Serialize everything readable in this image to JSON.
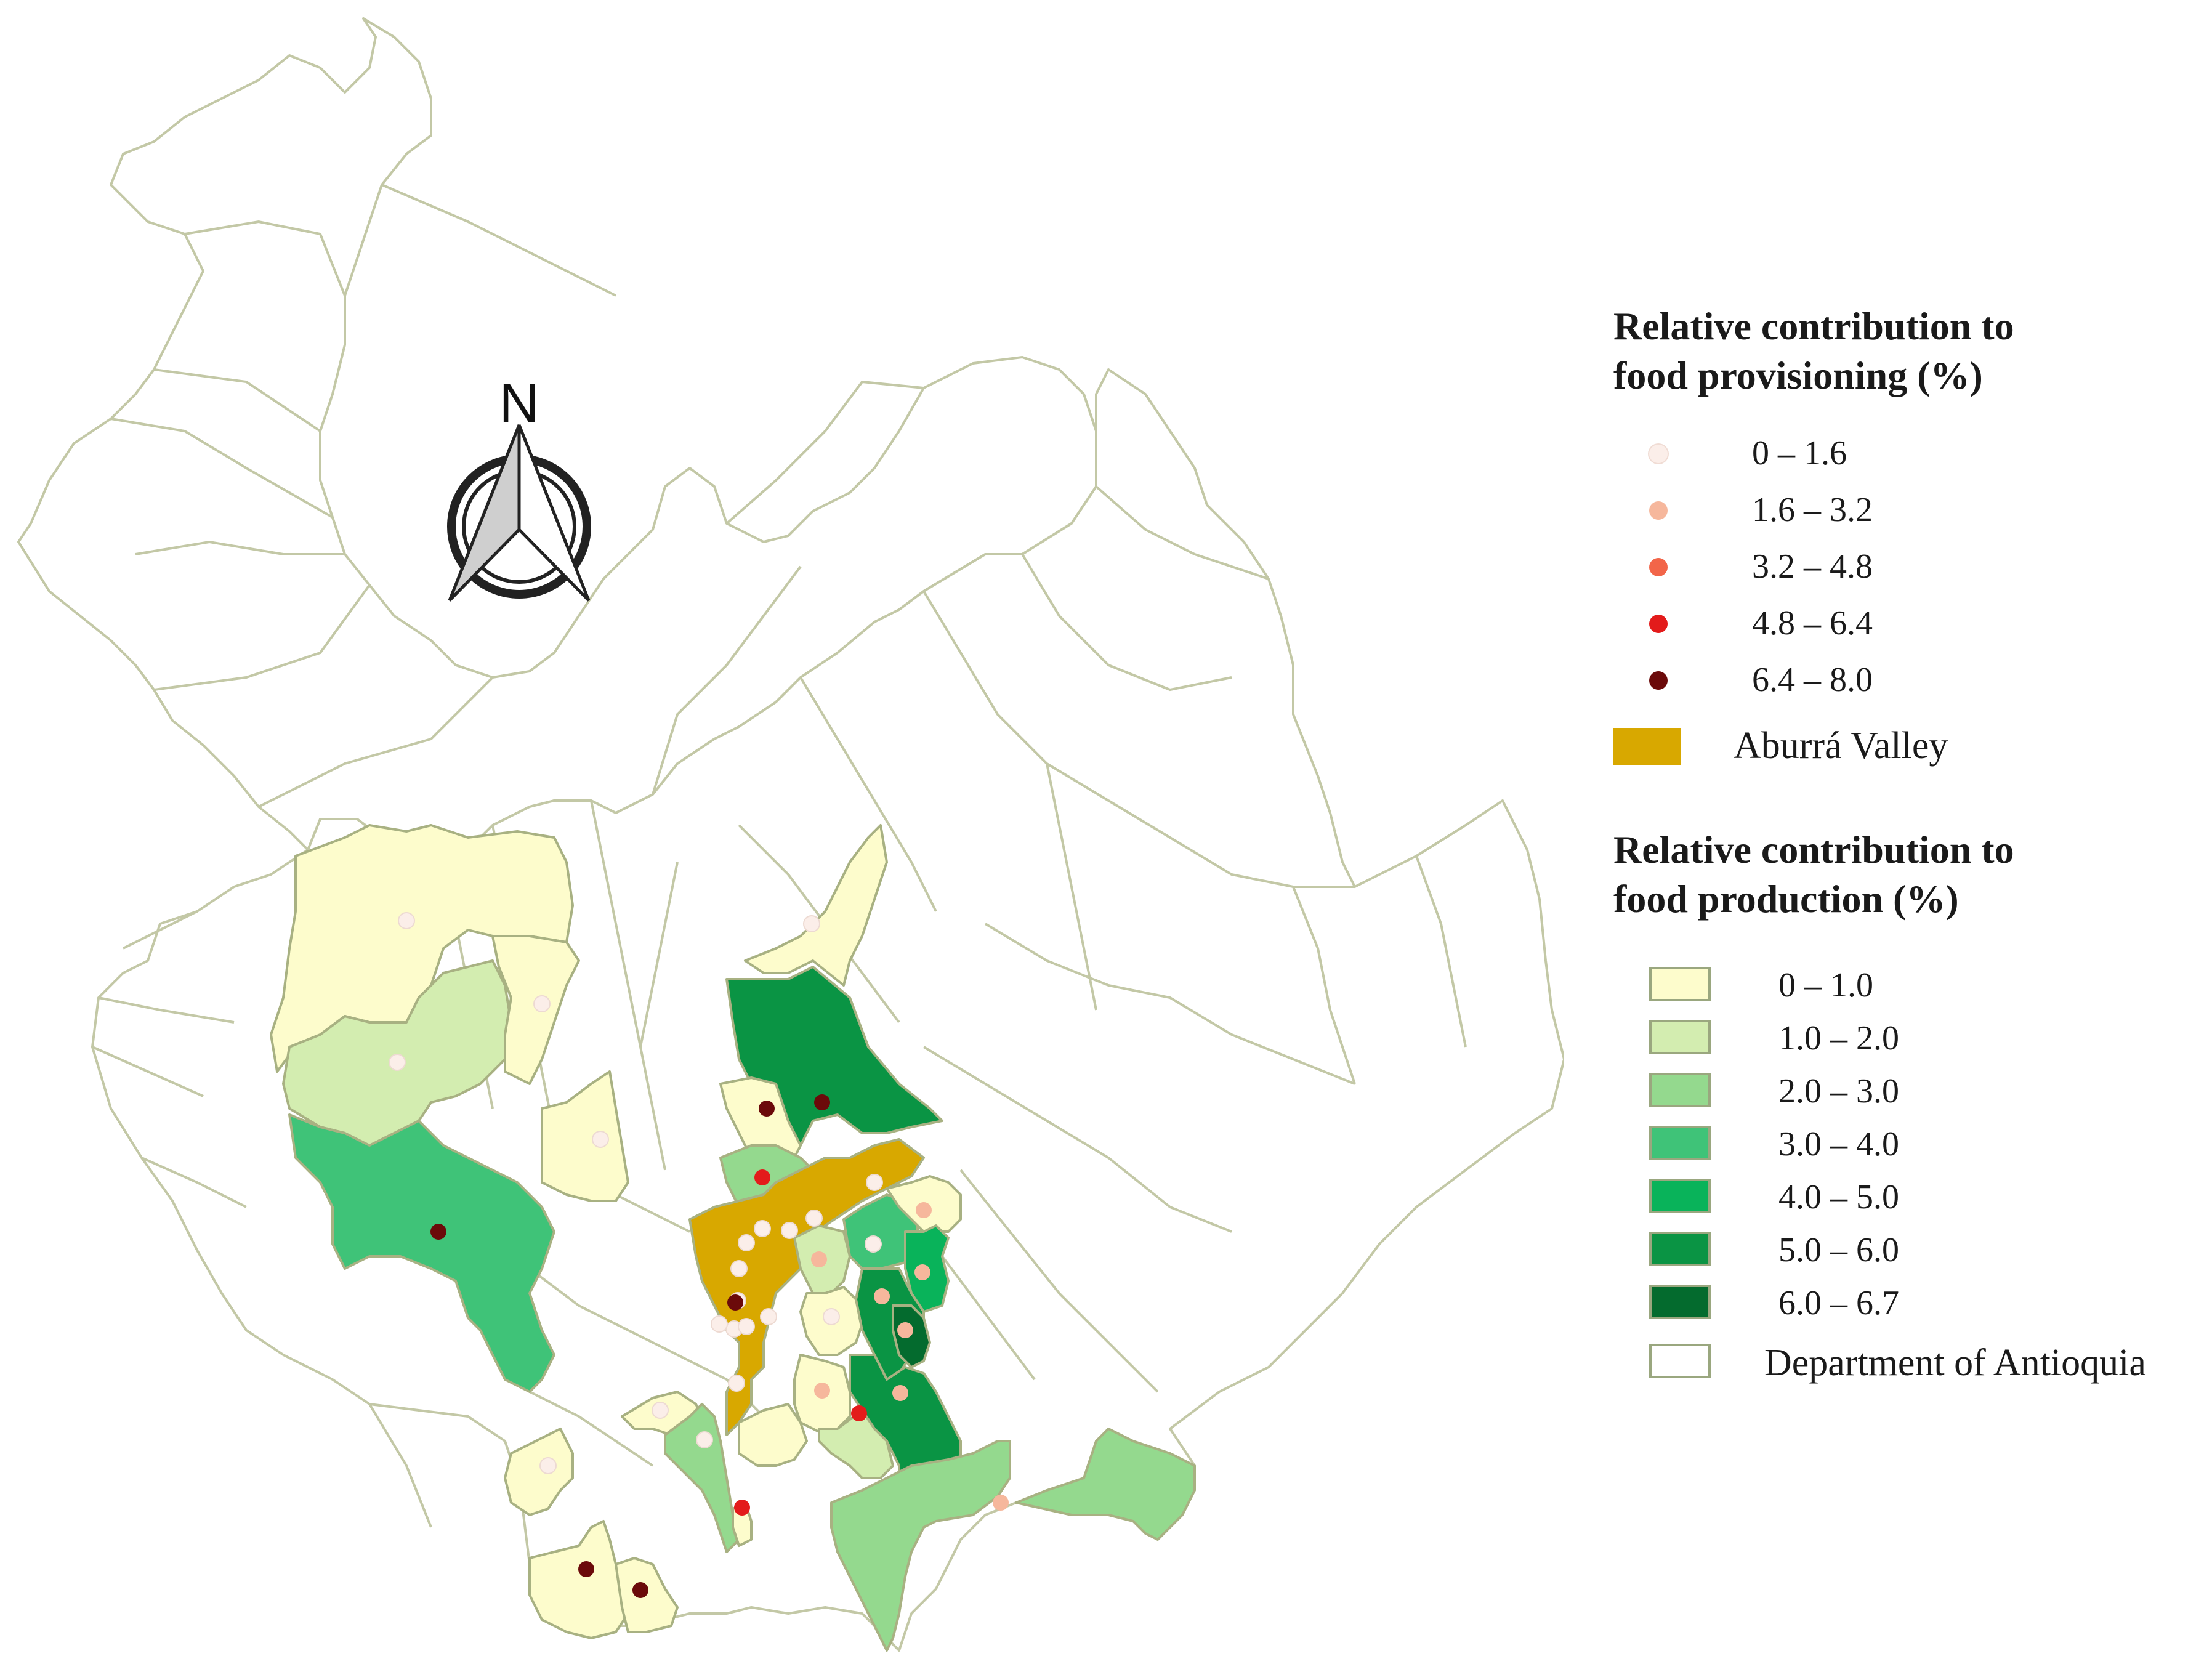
{
  "provisioning_legend": {
    "title_line1": "Relative contribution to",
    "title_line2": "food provisioning  (%)",
    "classes": [
      {
        "label": "0 – 1.6",
        "color": "#fbeee9"
      },
      {
        "label": "1.6 – 3.2",
        "color": "#f6b79c"
      },
      {
        "label": "3.2 – 4.8",
        "color": "#f26549"
      },
      {
        "label": "4.8 – 6.4",
        "color": "#e31b1b"
      },
      {
        "label": "6.4 – 8.0",
        "color": "#6b0a0a"
      }
    ],
    "valley_label": "Aburrá Valley",
    "valley_color": "#d8a800"
  },
  "production_legend": {
    "title_line1": "Relative contribution to",
    "title_line2": "food production (%)",
    "classes": [
      {
        "label": "0 – 1.0",
        "color": "#fdfccc"
      },
      {
        "label": "1.0 – 2.0",
        "color": "#d3edb0"
      },
      {
        "label": "2.0 – 3.0",
        "color": "#94d98e"
      },
      {
        "label": "3.0 – 4.0",
        "color": "#3fc378"
      },
      {
        "label": "4.0 – 5.0",
        "color": "#09b35a"
      },
      {
        "label": "5.0 – 6.0",
        "color": "#0a9444"
      },
      {
        "label": "6.0 – 6.7",
        "color": "#046b2e"
      },
      {
        "label": "Department of Antioquia",
        "color": "#ffffff"
      }
    ]
  },
  "north_arrow": {
    "label": "N"
  },
  "colors": {
    "boundary": "#c3c8a6",
    "map_background": "#ffffff"
  }
}
